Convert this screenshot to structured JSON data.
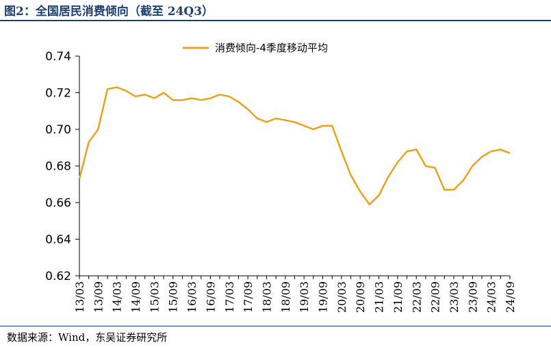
{
  "figure": {
    "title": "图2：全国居民消费倾向（截至 24Q3）",
    "source": "数据来源：Wind，东吴证券研究所"
  },
  "colors": {
    "line": "#E8A21E",
    "rule": "#1f3f73",
    "axis": "#000000"
  },
  "chart_data": {
    "type": "line",
    "legend_position": "top-center",
    "grid": false,
    "x_tick_labels": [
      "13/03",
      "13/09",
      "14/03",
      "14/09",
      "15/03",
      "15/09",
      "16/03",
      "16/09",
      "17/03",
      "17/09",
      "18/03",
      "18/09",
      "19/03",
      "19/09",
      "20/03",
      "20/09",
      "21/03",
      "21/09",
      "22/03",
      "22/09",
      "23/03",
      "23/09",
      "24/03",
      "24/09"
    ],
    "y_tick_labels": [
      "0.62",
      "0.64",
      "0.66",
      "0.68",
      "0.70",
      "0.72",
      "0.74"
    ],
    "ylim": [
      0.62,
      0.74
    ],
    "x": [
      "13/03",
      "13/06",
      "13/09",
      "13/12",
      "14/03",
      "14/06",
      "14/09",
      "14/12",
      "15/03",
      "15/06",
      "15/09",
      "15/12",
      "16/03",
      "16/06",
      "16/09",
      "16/12",
      "17/03",
      "17/06",
      "17/09",
      "17/12",
      "18/03",
      "18/06",
      "18/09",
      "18/12",
      "19/03",
      "19/06",
      "19/09",
      "19/12",
      "20/03",
      "20/06",
      "20/09",
      "20/12",
      "21/03",
      "21/06",
      "21/09",
      "21/12",
      "22/03",
      "22/06",
      "22/09",
      "22/12",
      "23/03",
      "23/06",
      "23/09",
      "23/12",
      "24/03",
      "24/06",
      "24/09"
    ],
    "series": [
      {
        "name": "消费倾向-4季度移动平均",
        "values": [
          0.673,
          0.693,
          0.7,
          0.722,
          0.723,
          0.721,
          0.718,
          0.719,
          0.717,
          0.72,
          0.716,
          0.716,
          0.717,
          0.716,
          0.717,
          0.719,
          0.718,
          0.715,
          0.711,
          0.706,
          0.704,
          0.706,
          0.705,
          0.704,
          0.702,
          0.7,
          0.702,
          0.702,
          0.688,
          0.675,
          0.666,
          0.659,
          0.664,
          0.674,
          0.682,
          0.688,
          0.689,
          0.68,
          0.679,
          0.667,
          0.667,
          0.672,
          0.68,
          0.685,
          0.688,
          0.689,
          0.687
        ]
      }
    ]
  }
}
